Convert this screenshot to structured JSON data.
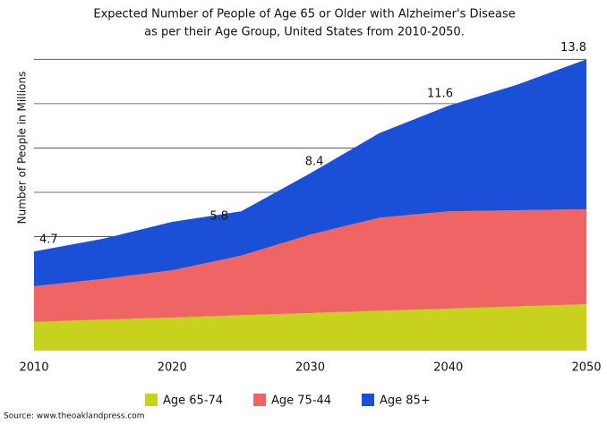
{
  "chart_data": {
    "type": "stacked_area",
    "title": [
      "Expected Number of People of Age 65 or Older with Alzheimer's Disease",
      "as per their Age Group, United States from 2010-2050."
    ],
    "y_label": "Number of People in Millions",
    "source": "Source: www.theoaklandpress.com",
    "x": [
      2010,
      2015,
      2020,
      2025,
      2030,
      2035,
      2040,
      2045,
      2050
    ],
    "xlim": [
      2010,
      2050
    ],
    "xticks": [
      2010,
      2020,
      2030,
      2040,
      2050
    ],
    "ylim": [
      0,
      14
    ],
    "grid_lines": [
      5.4,
      7.5,
      9.6,
      11.7,
      13.8
    ],
    "series": [
      {
        "name": "Age 65-74",
        "color": "#c8d21e",
        "values": [
          1.36,
          1.47,
          1.57,
          1.68,
          1.78,
          1.89,
          1.99,
          2.1,
          2.2
        ]
      },
      {
        "name": "Age 75-44",
        "color": "#ef6464",
        "values": [
          1.69,
          1.93,
          2.24,
          2.82,
          3.72,
          4.41,
          4.61,
          4.55,
          4.5
        ]
      },
      {
        "name": "Age 85+",
        "color": "#1a4fd8",
        "values": [
          1.65,
          1.9,
          2.29,
          2.1,
          2.9,
          4.0,
          5.0,
          5.95,
          7.1
        ]
      }
    ],
    "annotations": [
      {
        "x": 2010,
        "y": 4.7
      },
      {
        "x": 2023.4,
        "y": 5.8
      },
      {
        "x": 2030.3,
        "y": 8.4
      },
      {
        "x": 2039.4,
        "y": 11.6
      },
      {
        "x": 2050,
        "y": 13.8
      }
    ]
  }
}
